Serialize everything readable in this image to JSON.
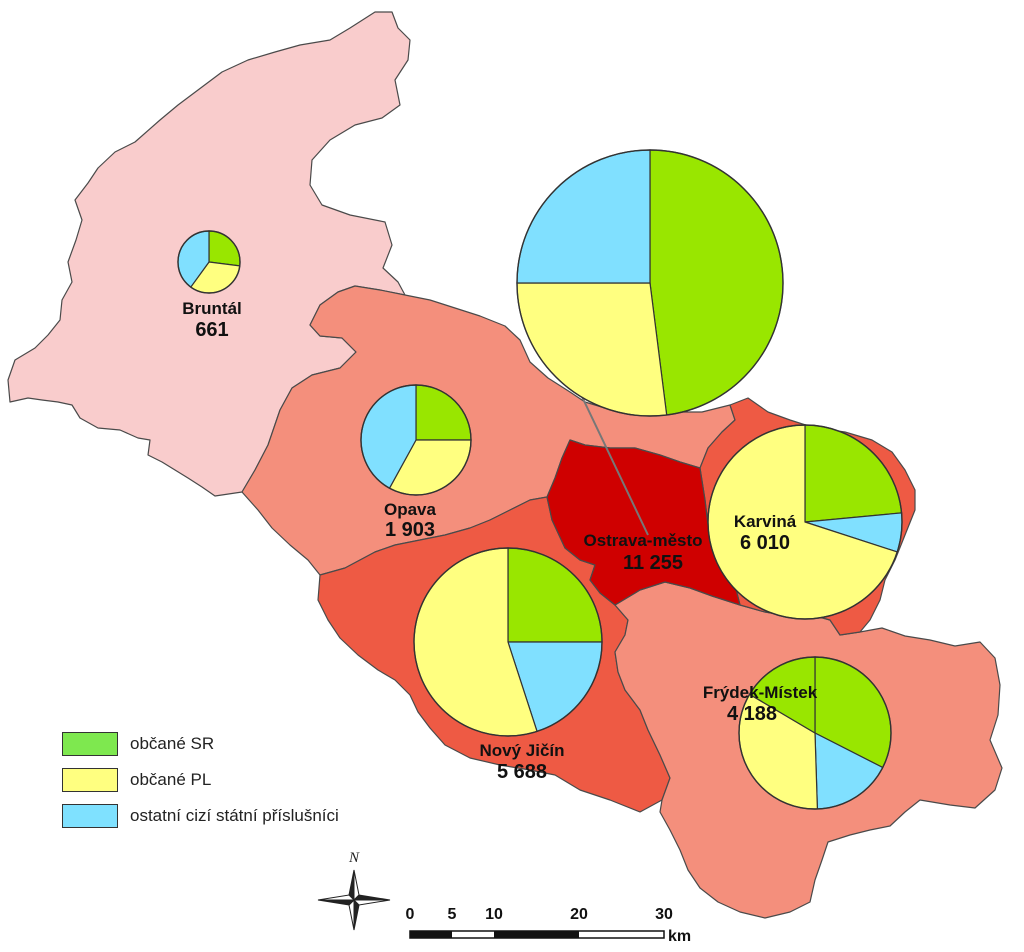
{
  "legend": [
    {
      "label": "občané SR",
      "color": "#7ee84f"
    },
    {
      "label": "občané PL",
      "color": "#ffff80"
    },
    {
      "label": "ostatní cizí státní příslušníci",
      "color": "#7fe1ff"
    }
  ],
  "regions": [
    {
      "name": "Bruntál",
      "value": "661",
      "fill": "#f9cccc"
    },
    {
      "name": "Opava",
      "value": "1 903",
      "fill": "#f48f7c"
    },
    {
      "name": "Nový Jičín",
      "value": "5 688",
      "fill": "#ee5a44"
    },
    {
      "name": "Ostrava-město",
      "value": "11 255",
      "fill": "#cf0000"
    },
    {
      "name": "Karviná",
      "value": "6 010",
      "fill": "#ee5a44"
    },
    {
      "name": "Frýdek-Místek",
      "value": "4 188",
      "fill": "#f48f7c"
    }
  ],
  "pies": [
    {
      "region": "Bruntál",
      "shares": [
        0.27,
        0.33,
        0.4
      ],
      "slice_colors": [
        "#99e600",
        "#ffff80",
        "#80e0ff"
      ]
    },
    {
      "region": "Opava",
      "shares": [
        0.25,
        0.33,
        0.42
      ],
      "slice_colors": [
        "#99e600",
        "#ffff80",
        "#80e0ff"
      ]
    },
    {
      "region": "Ostrava-město",
      "shares": [
        0.48,
        0.27,
        0.25
      ],
      "slice_colors": [
        "#99e600",
        "#ffff80",
        "#80e0ff"
      ]
    },
    {
      "region": "Karviná",
      "shares": [
        0.235,
        0.065,
        0.7
      ],
      "slice_colors": [
        "#99e600",
        "#80e0ff",
        "#ffff80"
      ]
    },
    {
      "region": "Nový Jičín",
      "shares": [
        0.25,
        0.2,
        0.55
      ],
      "slice_colors": [
        "#99e600",
        "#80e0ff",
        "#ffff80"
      ]
    },
    {
      "region": "Frýdek-Místek",
      "shares": [
        0.325,
        0.17,
        0.34,
        0.165
      ],
      "slice_colors": [
        "#99e600",
        "#80e0ff",
        "#ffff80",
        "#99e600"
      ]
    }
  ],
  "north_arrow": {
    "label": "N"
  },
  "scale_bar": {
    "ticks": [
      "0",
      "5",
      "10",
      "20",
      "30"
    ],
    "unit": "km"
  }
}
